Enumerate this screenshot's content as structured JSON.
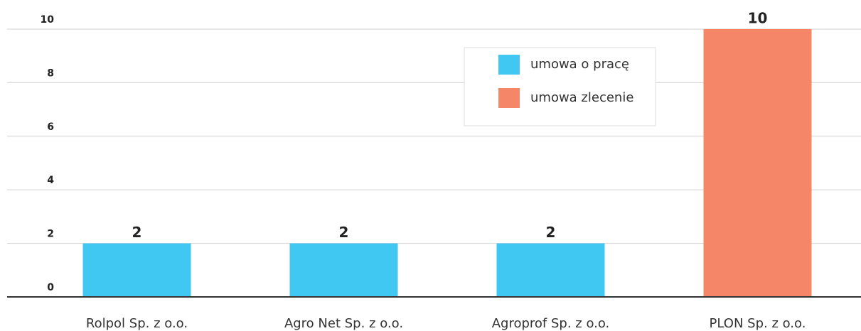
{
  "chart_data": {
    "type": "bar",
    "categories": [
      "Rolpol Sp. z o.o.",
      "Agro Net Sp. z o.o.",
      "Agroprof Sp. z o.o.",
      "PLON Sp. z o.o."
    ],
    "series": [
      {
        "name": "umowa o pracę",
        "color": "#41c8f2",
        "values": [
          2,
          2,
          2,
          null
        ]
      },
      {
        "name": "umowa zlecenie",
        "color": "#f58667",
        "values": [
          null,
          null,
          null,
          10
        ]
      }
    ],
    "ylim": [
      0,
      10
    ],
    "yticks": [
      0,
      2,
      4,
      6,
      8,
      10
    ],
    "grid": true,
    "legend": "top-right",
    "data_labels": true
  }
}
